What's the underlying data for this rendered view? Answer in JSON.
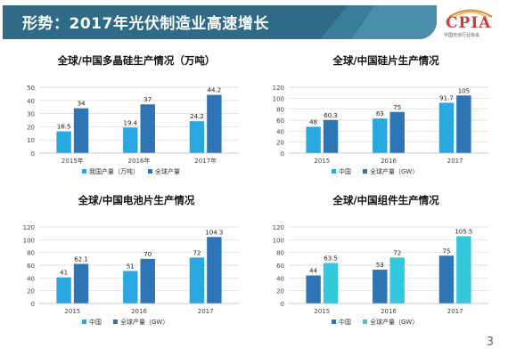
{
  "header": {
    "title": "形势：2017年光伏制造业高速增长"
  },
  "logo": {
    "text": "CPIA",
    "subtitle": "中国光伏行业协会"
  },
  "page_number": "3",
  "colors": {
    "banner": "#2f6b86",
    "light_blue": "#29a8e0",
    "dark_blue": "#2e75b6",
    "cyan": "#33c8dc"
  },
  "chart_data": [
    {
      "type": "bar",
      "title": "全球/中国多晶硅生产情况（万吨）",
      "categories": [
        "2015年",
        "2016年",
        "2017年"
      ],
      "series": [
        {
          "name": "我国产量（万吨）",
          "values": [
            16.5,
            19.4,
            24.2
          ],
          "color": "#29a8e0"
        },
        {
          "name": "全球产量",
          "values": [
            34,
            37,
            44.2
          ],
          "color": "#2e75b6"
        }
      ],
      "ylim": [
        0,
        50
      ],
      "yticks": [
        0,
        10,
        20,
        30,
        40,
        50
      ],
      "grid": true,
      "legend": "bottom"
    },
    {
      "type": "bar",
      "title": "全球/中国硅片生产情况",
      "categories": [
        "2015",
        "2016",
        "2017"
      ],
      "series": [
        {
          "name": "中国",
          "values": [
            48,
            63,
            91.7
          ],
          "color": "#29a8e0"
        },
        {
          "name": "全球产量（GW）",
          "values": [
            60.3,
            75,
            105
          ],
          "color": "#2e75b6"
        }
      ],
      "ylim": [
        0,
        120
      ],
      "yticks": [
        0,
        20,
        40,
        60,
        80,
        100,
        120
      ],
      "grid": true,
      "legend": "bottom"
    },
    {
      "type": "bar",
      "title": "全球/中国电池片生产情况",
      "categories": [
        "2015",
        "2016",
        "2017"
      ],
      "series": [
        {
          "name": "中国",
          "values": [
            41,
            51,
            72
          ],
          "color": "#29a8e0"
        },
        {
          "name": "全球产量（GW）",
          "values": [
            62.1,
            70,
            104.3
          ],
          "color": "#2e75b6"
        }
      ],
      "ylim": [
        0,
        120
      ],
      "yticks": [
        0,
        20,
        40,
        60,
        80,
        100,
        120
      ],
      "grid": true,
      "legend": "bottom"
    },
    {
      "type": "bar",
      "title": "全球/中国组件生产情况",
      "categories": [
        "2015",
        "2016",
        "2017"
      ],
      "series": [
        {
          "name": "中国",
          "values": [
            44,
            53,
            75
          ],
          "color": "#2e75b6"
        },
        {
          "name": "全球产量（GW）",
          "values": [
            63.5,
            72,
            105.5
          ],
          "color": "#33c8dc"
        }
      ],
      "ylim": [
        0,
        120
      ],
      "yticks": [
        0,
        20,
        40,
        60,
        80,
        100,
        120
      ],
      "grid": true,
      "legend": "bottom"
    }
  ]
}
